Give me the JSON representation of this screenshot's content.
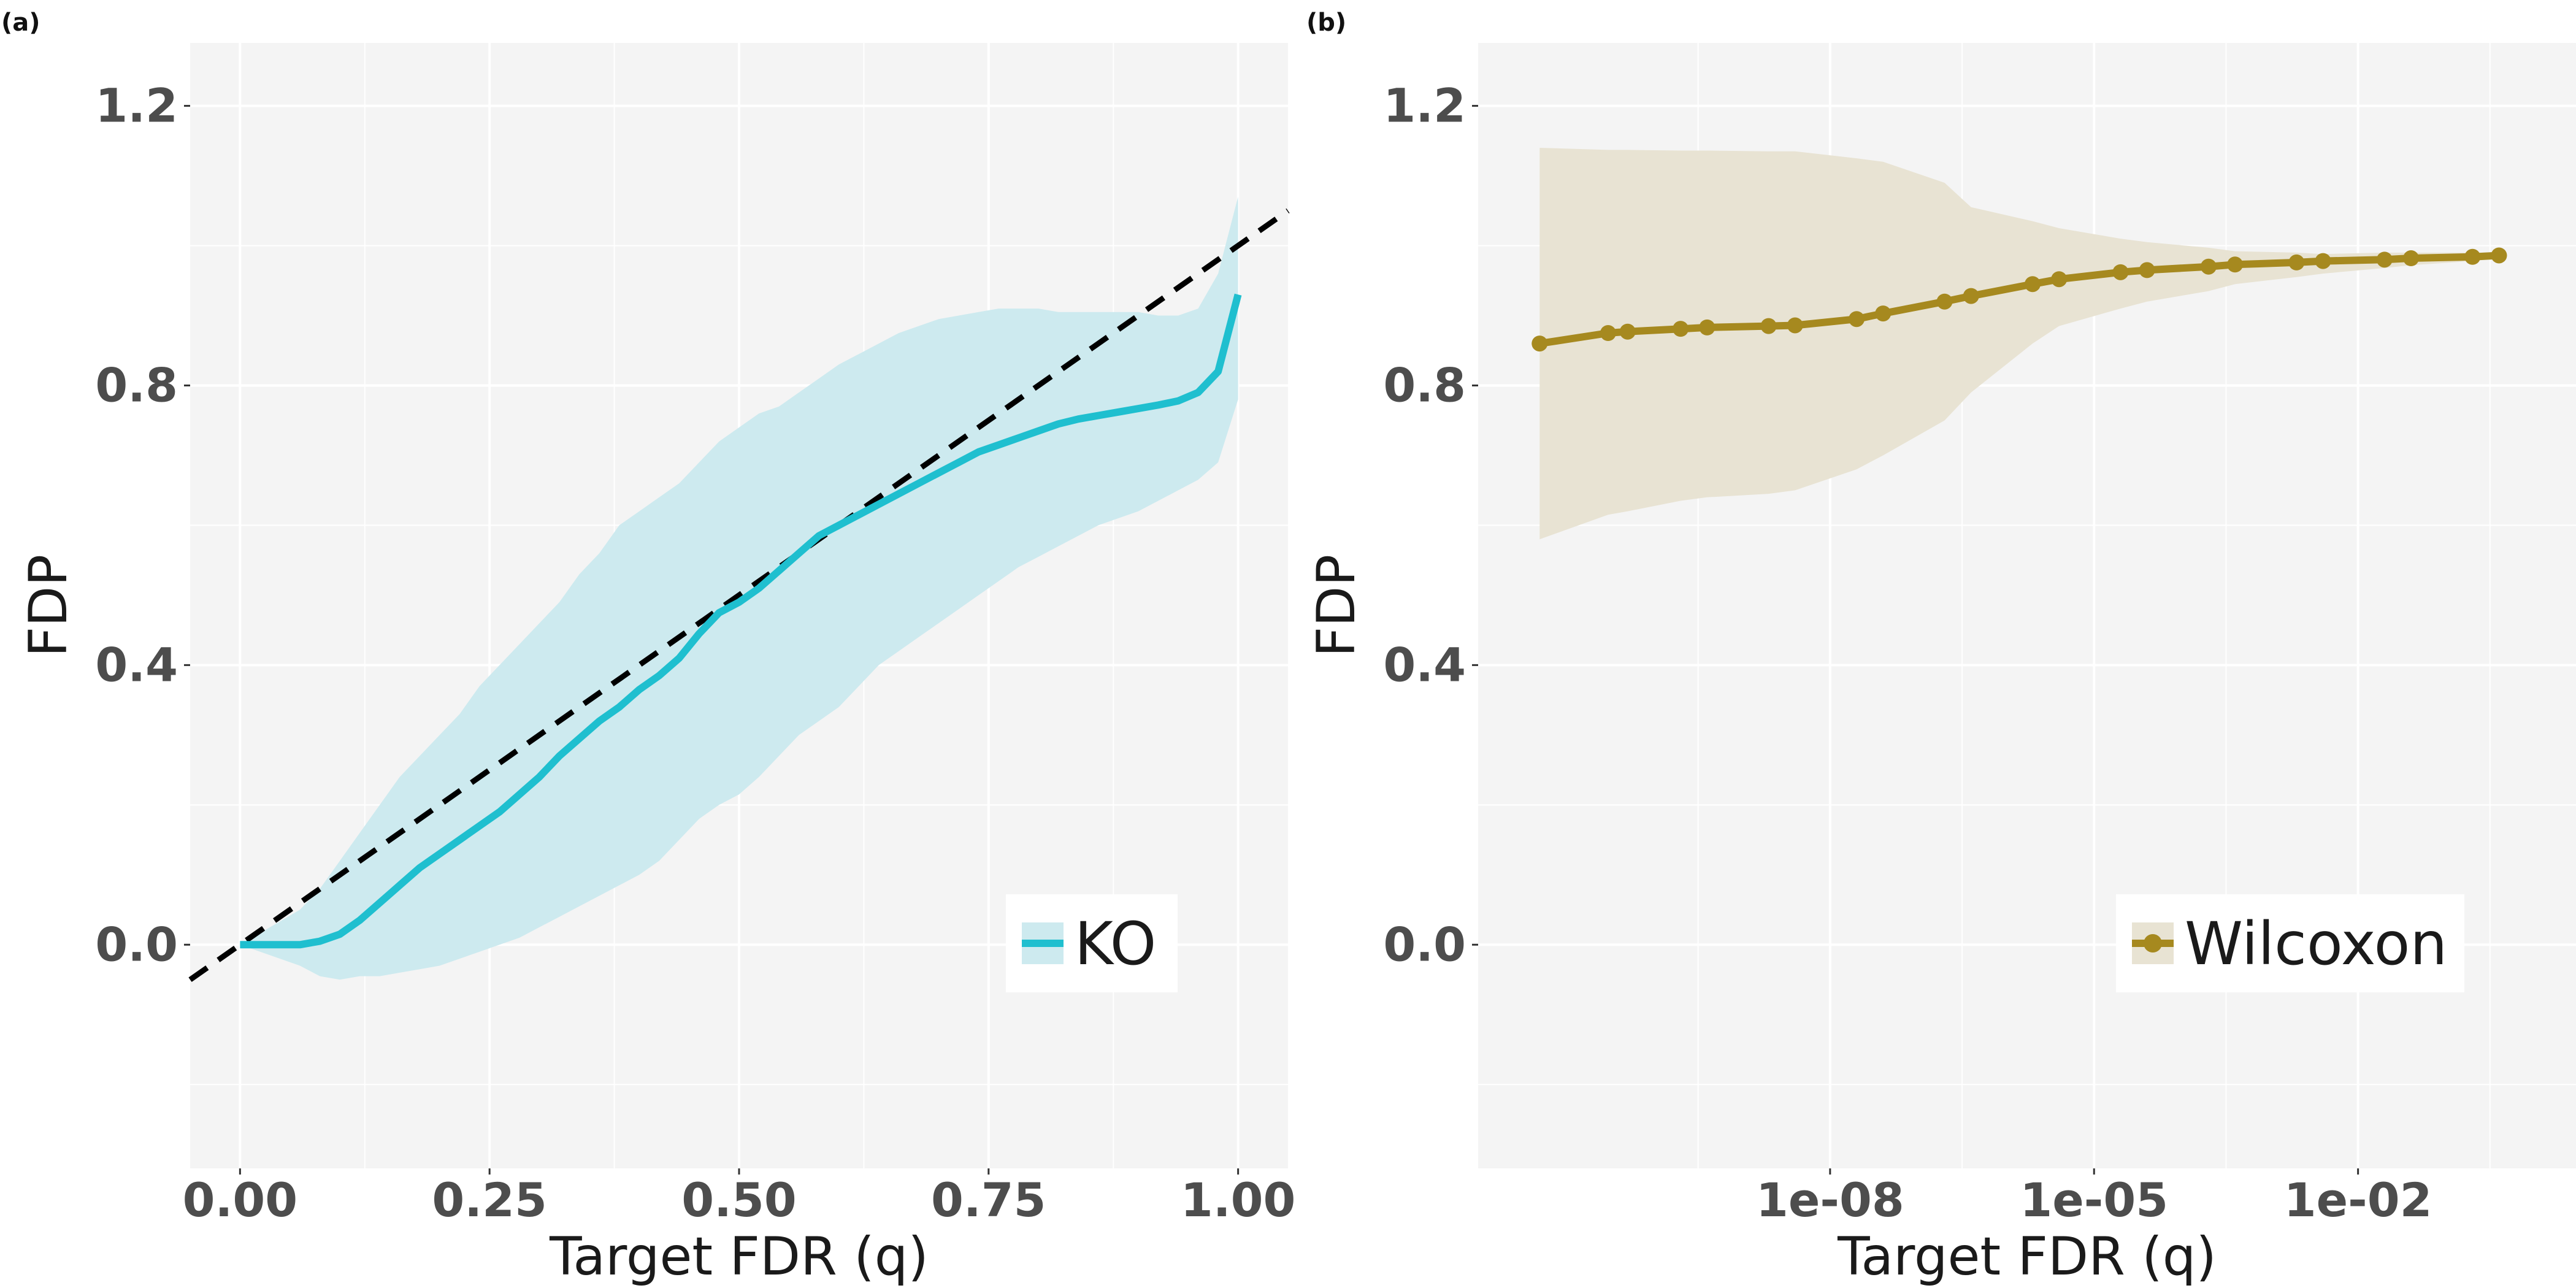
{
  "chart_data": [
    {
      "panel_label": "(a)",
      "type": "line",
      "xlabel": "Target FDR (q)",
      "ylabel": "FDP",
      "xlim": [
        -0.05,
        1.05
      ],
      "ylim": [
        -0.32,
        1.29
      ],
      "x_ticks": [
        0,
        0.25,
        0.5,
        0.75,
        1.0
      ],
      "x_tick_labels": [
        "0.00",
        "0.25",
        "0.50",
        "0.75",
        "1.00"
      ],
      "y_ticks": [
        0.0,
        0.4,
        0.8,
        1.2
      ],
      "y_tick_labels": [
        "0.0",
        "0.4",
        "0.8",
        "1.2"
      ],
      "grid": true,
      "legend_position": "bottom-right",
      "reference_line": {
        "style": "dashed",
        "color": "#000000",
        "x": [
          -0.05,
          1.05
        ],
        "y": [
          -0.05,
          1.05
        ]
      },
      "series": [
        {
          "name": "KO",
          "color": "#1fbfcf",
          "band_color": "#cdeaef",
          "x": [
            0.0,
            0.06,
            0.08,
            0.1,
            0.12,
            0.14,
            0.16,
            0.18,
            0.2,
            0.22,
            0.24,
            0.26,
            0.28,
            0.3,
            0.32,
            0.34,
            0.36,
            0.38,
            0.4,
            0.42,
            0.44,
            0.46,
            0.48,
            0.5,
            0.52,
            0.54,
            0.56,
            0.58,
            0.6,
            0.62,
            0.64,
            0.66,
            0.68,
            0.7,
            0.72,
            0.74,
            0.76,
            0.78,
            0.8,
            0.82,
            0.84,
            0.86,
            0.88,
            0.9,
            0.92,
            0.94,
            0.96,
            0.98,
            1.0
          ],
          "y": [
            0.0,
            0.0,
            0.005,
            0.015,
            0.035,
            0.06,
            0.085,
            0.11,
            0.13,
            0.15,
            0.17,
            0.19,
            0.215,
            0.24,
            0.27,
            0.295,
            0.32,
            0.34,
            0.365,
            0.385,
            0.41,
            0.445,
            0.475,
            0.49,
            0.51,
            0.535,
            0.56,
            0.585,
            0.6,
            0.615,
            0.63,
            0.645,
            0.66,
            0.675,
            0.69,
            0.705,
            0.715,
            0.725,
            0.735,
            0.745,
            0.752,
            0.757,
            0.762,
            0.767,
            0.772,
            0.778,
            0.79,
            0.82,
            0.93
          ],
          "lower": [
            0.0,
            -0.03,
            -0.045,
            -0.05,
            -0.045,
            -0.045,
            -0.04,
            -0.035,
            -0.03,
            -0.02,
            -0.01,
            0.0,
            0.01,
            0.025,
            0.04,
            0.055,
            0.07,
            0.085,
            0.1,
            0.12,
            0.15,
            0.18,
            0.2,
            0.215,
            0.24,
            0.27,
            0.3,
            0.32,
            0.34,
            0.37,
            0.4,
            0.42,
            0.44,
            0.46,
            0.48,
            0.5,
            0.52,
            0.54,
            0.555,
            0.57,
            0.585,
            0.6,
            0.61,
            0.62,
            0.635,
            0.65,
            0.665,
            0.69,
            0.78
          ],
          "upper": [
            0.0,
            0.05,
            0.08,
            0.12,
            0.16,
            0.2,
            0.24,
            0.27,
            0.3,
            0.33,
            0.37,
            0.4,
            0.43,
            0.46,
            0.49,
            0.53,
            0.56,
            0.6,
            0.62,
            0.64,
            0.66,
            0.69,
            0.72,
            0.74,
            0.76,
            0.77,
            0.79,
            0.81,
            0.83,
            0.845,
            0.86,
            0.875,
            0.885,
            0.895,
            0.9,
            0.905,
            0.91,
            0.91,
            0.91,
            0.905,
            0.905,
            0.905,
            0.905,
            0.905,
            0.9,
            0.9,
            0.91,
            0.96,
            1.07
          ]
        }
      ]
    },
    {
      "panel_label": "(b)",
      "type": "line",
      "xlabel": "Target FDR (q)",
      "ylabel": "FDP",
      "x_scale": "log10",
      "xlim": [
        1e-12,
        3
      ],
      "ylim": [
        -0.32,
        1.29
      ],
      "x_ticks": [
        1e-08,
        1e-05,
        0.01
      ],
      "x_tick_labels": [
        "1e-08",
        "1e-05",
        "1e-02"
      ],
      "y_ticks": [
        0.0,
        0.4,
        0.8,
        1.2
      ],
      "y_tick_labels": [
        "0.0",
        "0.4",
        "0.8",
        "1.2"
      ],
      "grid": true,
      "legend_position": "bottom-right",
      "series": [
        {
          "name": "Wilcoxon",
          "color": "#a6891f",
          "band_color": "#e8e3d3",
          "x": [
            5e-12,
            3e-11,
            5e-11,
            2e-10,
            4e-10,
            2e-09,
            4e-09,
            2e-08,
            4e-08,
            2e-07,
            4e-07,
            2e-06,
            4e-06,
            2e-05,
            4e-05,
            0.0002,
            0.0004,
            0.002,
            0.004,
            0.02,
            0.04,
            0.2,
            0.4
          ],
          "y": [
            0.86,
            0.875,
            0.877,
            0.881,
            0.883,
            0.885,
            0.886,
            0.895,
            0.903,
            0.92,
            0.928,
            0.945,
            0.952,
            0.962,
            0.965,
            0.97,
            0.973,
            0.976,
            0.978,
            0.98,
            0.982,
            0.984,
            0.986
          ],
          "lower": [
            0.58,
            0.615,
            0.62,
            0.635,
            0.64,
            0.645,
            0.65,
            0.68,
            0.7,
            0.75,
            0.79,
            0.86,
            0.885,
            0.91,
            0.92,
            0.935,
            0.945,
            0.955,
            0.96,
            0.968,
            0.972,
            0.978,
            0.982
          ],
          "upper": [
            1.14,
            1.137,
            1.137,
            1.136,
            1.136,
            1.135,
            1.135,
            1.125,
            1.12,
            1.09,
            1.055,
            1.035,
            1.025,
            1.01,
            1.005,
            0.997,
            0.992,
            0.99,
            0.988,
            0.99,
            0.99,
            0.99,
            0.99
          ]
        }
      ]
    }
  ]
}
